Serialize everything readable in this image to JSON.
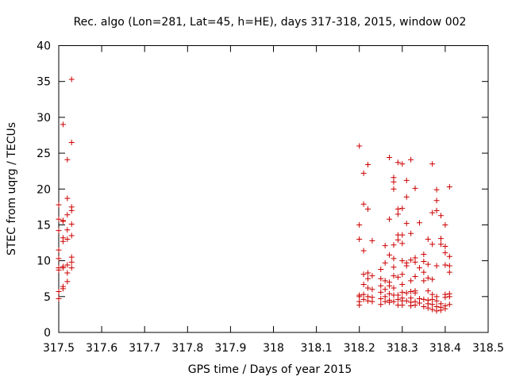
{
  "chart_data": {
    "type": "scatter",
    "title": "Rec. algo (Lon=281, Lat=45, h=HE), days 317-318, 2015, window 002",
    "xlabel": "GPS time / Days of year 2015",
    "ylabel": "STEC from uqrg / TECUs",
    "xlim": [
      317.5,
      318.5
    ],
    "ylim": [
      0,
      40
    ],
    "x_ticks": [
      "317.5",
      "317.6",
      "317.7",
      "317.8",
      "317.9",
      "318",
      "318.1",
      "318.2",
      "318.3",
      "318.4",
      "318.5"
    ],
    "y_ticks": [
      "0",
      "5",
      "10",
      "15",
      "20",
      "25",
      "30",
      "35",
      "40"
    ],
    "grid": false,
    "legend": "none",
    "marker": "+",
    "color": "#cc0000",
    "points": [
      [
        317.5,
        17.8
      ],
      [
        317.5,
        15.8
      ],
      [
        317.5,
        14.2
      ],
      [
        317.5,
        11.5
      ],
      [
        317.5,
        10.3
      ],
      [
        317.5,
        9.0
      ],
      [
        317.5,
        8.7
      ],
      [
        317.5,
        5.7
      ],
      [
        317.5,
        4.7
      ],
      [
        317.51,
        29.0
      ],
      [
        317.51,
        15.6
      ],
      [
        317.51,
        15.5
      ],
      [
        317.51,
        13.2
      ],
      [
        317.51,
        12.7
      ],
      [
        317.51,
        9.2
      ],
      [
        317.51,
        9.0
      ],
      [
        317.51,
        6.4
      ],
      [
        317.51,
        6.1
      ],
      [
        317.52,
        24.1
      ],
      [
        317.52,
        18.7
      ],
      [
        317.52,
        16.4
      ],
      [
        317.52,
        14.3
      ],
      [
        317.52,
        13.0
      ],
      [
        317.52,
        9.4
      ],
      [
        317.52,
        8.3
      ],
      [
        317.52,
        7.1
      ],
      [
        317.53,
        35.3
      ],
      [
        317.53,
        26.5
      ],
      [
        317.53,
        17.5
      ],
      [
        317.53,
        17.0
      ],
      [
        317.53,
        15.1
      ],
      [
        317.53,
        13.5
      ],
      [
        317.53,
        10.5
      ],
      [
        317.53,
        9.8
      ],
      [
        317.53,
        9.0
      ],
      [
        318.2,
        26.0
      ],
      [
        318.2,
        15.0
      ],
      [
        318.2,
        13.0
      ],
      [
        318.2,
        5.2
      ],
      [
        318.2,
        5.0
      ],
      [
        318.2,
        4.3
      ],
      [
        318.2,
        3.8
      ],
      [
        318.21,
        22.2
      ],
      [
        318.21,
        17.9
      ],
      [
        318.21,
        11.4
      ],
      [
        318.21,
        8.1
      ],
      [
        318.21,
        6.7
      ],
      [
        318.21,
        5.3
      ],
      [
        318.21,
        4.6
      ],
      [
        318.22,
        23.4
      ],
      [
        318.22,
        17.2
      ],
      [
        318.22,
        8.3
      ],
      [
        318.22,
        7.5
      ],
      [
        318.22,
        6.2
      ],
      [
        318.22,
        5.0
      ],
      [
        318.22,
        4.4
      ],
      [
        318.23,
        12.8
      ],
      [
        318.23,
        7.9
      ],
      [
        318.23,
        6.0
      ],
      [
        318.23,
        4.9
      ],
      [
        318.23,
        4.3
      ],
      [
        318.25,
        8.8
      ],
      [
        318.25,
        7.5
      ],
      [
        318.25,
        6.5
      ],
      [
        318.25,
        5.6
      ],
      [
        318.25,
        4.7
      ],
      [
        318.25,
        3.9
      ],
      [
        318.26,
        12.1
      ],
      [
        318.26,
        9.7
      ],
      [
        318.26,
        7.2
      ],
      [
        318.26,
        6.0
      ],
      [
        318.26,
        5.0
      ],
      [
        318.26,
        4.3
      ],
      [
        318.27,
        24.4
      ],
      [
        318.27,
        15.8
      ],
      [
        318.27,
        10.8
      ],
      [
        318.27,
        7.0
      ],
      [
        318.27,
        6.5
      ],
      [
        318.27,
        5.4
      ],
      [
        318.27,
        4.5
      ],
      [
        318.27,
        4.2
      ],
      [
        318.28,
        21.6
      ],
      [
        318.28,
        21.0
      ],
      [
        318.28,
        20.0
      ],
      [
        318.28,
        12.2
      ],
      [
        318.28,
        10.3
      ],
      [
        318.28,
        9.1
      ],
      [
        318.28,
        7.9
      ],
      [
        318.28,
        6.2
      ],
      [
        318.28,
        5.2
      ],
      [
        318.28,
        4.3
      ],
      [
        318.29,
        23.7
      ],
      [
        318.29,
        17.2
      ],
      [
        318.29,
        16.5
      ],
      [
        318.29,
        13.6
      ],
      [
        318.29,
        12.9
      ],
      [
        318.29,
        7.7
      ],
      [
        318.29,
        5.2
      ],
      [
        318.29,
        4.6
      ],
      [
        318.29,
        3.8
      ],
      [
        318.3,
        23.5
      ],
      [
        318.3,
        17.3
      ],
      [
        318.3,
        13.6
      ],
      [
        318.3,
        12.4
      ],
      [
        318.3,
        10.0
      ],
      [
        318.3,
        8.1
      ],
      [
        318.3,
        6.7
      ],
      [
        318.3,
        5.6
      ],
      [
        318.3,
        4.8
      ],
      [
        318.3,
        4.4
      ],
      [
        318.3,
        3.8
      ],
      [
        318.31,
        21.2
      ],
      [
        318.31,
        18.9
      ],
      [
        318.31,
        15.2
      ],
      [
        318.31,
        9.7
      ],
      [
        318.31,
        9.3
      ],
      [
        318.31,
        5.5
      ],
      [
        318.31,
        4.4
      ],
      [
        318.32,
        24.1
      ],
      [
        318.32,
        13.8
      ],
      [
        318.32,
        10.1
      ],
      [
        318.32,
        7.2
      ],
      [
        318.32,
        5.7
      ],
      [
        318.32,
        4.8
      ],
      [
        318.32,
        4.2
      ],
      [
        318.32,
        3.7
      ],
      [
        318.33,
        20.1
      ],
      [
        318.33,
        10.4
      ],
      [
        318.33,
        9.8
      ],
      [
        318.33,
        7.8
      ],
      [
        318.33,
        5.8
      ],
      [
        318.33,
        5.5
      ],
      [
        318.33,
        4.3
      ],
      [
        318.33,
        3.8
      ],
      [
        318.34,
        15.3
      ],
      [
        318.34,
        9.0
      ],
      [
        318.34,
        4.7
      ],
      [
        318.34,
        4.1
      ],
      [
        318.35,
        10.9
      ],
      [
        318.35,
        9.9
      ],
      [
        318.35,
        8.4
      ],
      [
        318.35,
        7.2
      ],
      [
        318.35,
        4.6
      ],
      [
        318.35,
        3.6
      ],
      [
        318.36,
        13.0
      ],
      [
        318.36,
        9.5
      ],
      [
        318.36,
        7.6
      ],
      [
        318.36,
        5.8
      ],
      [
        318.36,
        4.5
      ],
      [
        318.36,
        4.0
      ],
      [
        318.36,
        3.4
      ],
      [
        318.37,
        23.5
      ],
      [
        318.37,
        16.7
      ],
      [
        318.37,
        12.3
      ],
      [
        318.37,
        7.4
      ],
      [
        318.37,
        5.3
      ],
      [
        318.37,
        4.6
      ],
      [
        318.37,
        3.9
      ],
      [
        318.37,
        3.2
      ],
      [
        318.38,
        19.9
      ],
      [
        318.38,
        18.4
      ],
      [
        318.38,
        17.0
      ],
      [
        318.38,
        9.3
      ],
      [
        318.38,
        5.0
      ],
      [
        318.38,
        4.4
      ],
      [
        318.38,
        3.6
      ],
      [
        318.38,
        3.0
      ],
      [
        318.39,
        16.3
      ],
      [
        318.39,
        13.1
      ],
      [
        318.39,
        12.3
      ],
      [
        318.39,
        4.0
      ],
      [
        318.39,
        3.5
      ],
      [
        318.39,
        3.1
      ],
      [
        318.4,
        15.0
      ],
      [
        318.4,
        12.0
      ],
      [
        318.4,
        11.1
      ],
      [
        318.4,
        9.4
      ],
      [
        318.4,
        5.3
      ],
      [
        318.4,
        4.9
      ],
      [
        318.4,
        3.7
      ],
      [
        318.4,
        3.3
      ],
      [
        318.41,
        20.3
      ],
      [
        318.41,
        10.6
      ],
      [
        318.41,
        9.3
      ],
      [
        318.41,
        8.4
      ],
      [
        318.41,
        5.4
      ],
      [
        318.41,
        5.0
      ],
      [
        318.41,
        3.9
      ]
    ]
  }
}
